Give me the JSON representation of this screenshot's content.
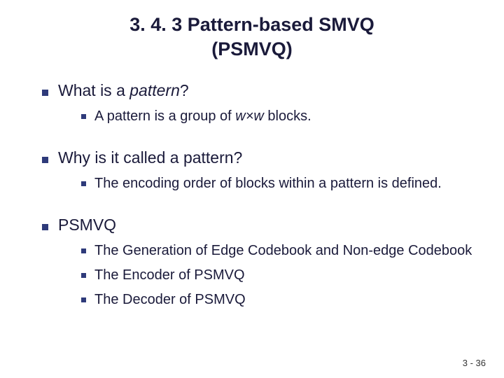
{
  "title_line1": "3. 4. 3  Pattern-based SMVQ",
  "title_line2": "(PSMVQ)",
  "sections": [
    {
      "heading_pre": "What is a ",
      "heading_italic": "pattern",
      "heading_post": "?",
      "subs": [
        {
          "pre": "A pattern is a group of ",
          "italic": "w×w",
          "post": " blocks."
        }
      ]
    },
    {
      "heading_pre": "Why is it called a pattern?",
      "heading_italic": "",
      "heading_post": "",
      "subs": [
        {
          "pre": "The encoding order of blocks within a pattern is defined.",
          "italic": "",
          "post": ""
        }
      ]
    },
    {
      "heading_pre": "PSMVQ",
      "heading_italic": "",
      "heading_post": "",
      "subs": [
        {
          "pre": "The Generation of Edge Codebook and Non-edge Codebook",
          "italic": "",
          "post": ""
        },
        {
          "pre": "The Encoder of PSMVQ",
          "italic": "",
          "post": ""
        },
        {
          "pre": "The Decoder of PSMVQ",
          "italic": "",
          "post": ""
        }
      ]
    }
  ],
  "footer": "3 - 36",
  "colors": {
    "bullet": "#2e3a7a",
    "text": "#1a1a3a",
    "background": "#ffffff"
  }
}
